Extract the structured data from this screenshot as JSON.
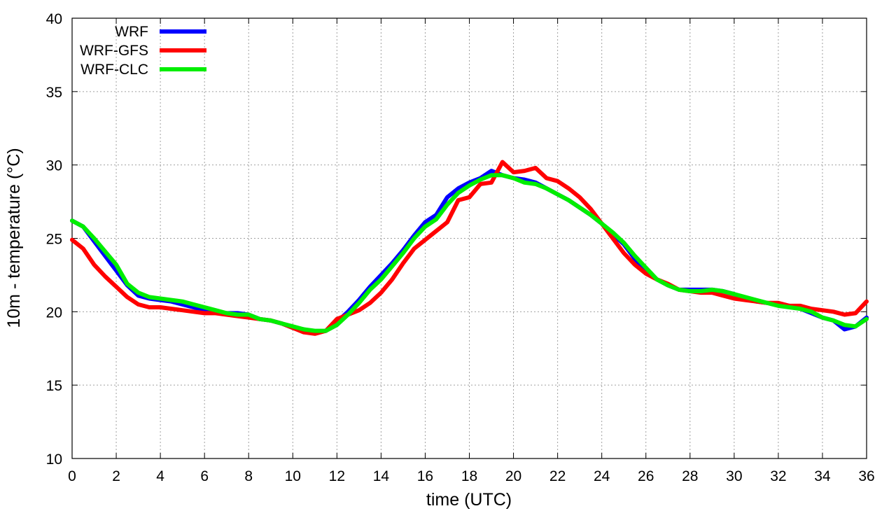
{
  "chart_data": {
    "type": "line",
    "xlabel": "time (UTC)",
    "ylabel": "10m - temperature (°C)",
    "xlim": [
      0,
      36
    ],
    "ylim": [
      10,
      40
    ],
    "xticks": [
      0,
      2,
      4,
      6,
      8,
      10,
      12,
      14,
      16,
      18,
      20,
      22,
      24,
      26,
      28,
      30,
      32,
      34,
      36
    ],
    "yticks": [
      10,
      15,
      20,
      25,
      30,
      35,
      40
    ],
    "grid": true,
    "legend_position": "top-left",
    "x": [
      0,
      0.5,
      1,
      1.5,
      2,
      2.5,
      3,
      3.5,
      4,
      4.5,
      5,
      5.5,
      6,
      6.5,
      7,
      7.5,
      8,
      8.5,
      9,
      9.5,
      10,
      10.5,
      11,
      11.5,
      12,
      12.5,
      13,
      13.5,
      14,
      14.5,
      15,
      15.5,
      16,
      16.5,
      17,
      17.5,
      18,
      18.5,
      19,
      19.5,
      20,
      20.5,
      21,
      21.5,
      22,
      22.5,
      23,
      23.5,
      24,
      24.5,
      25,
      25.5,
      26,
      26.5,
      27,
      27.5,
      28,
      28.5,
      29,
      29.5,
      30,
      30.5,
      31,
      31.5,
      32,
      32.5,
      33,
      33.5,
      34,
      34.5,
      35,
      35.5,
      36
    ],
    "series": [
      {
        "name": "WRF",
        "color": "#0000ff",
        "values": [
          26.2,
          25.8,
          24.8,
          23.8,
          22.8,
          21.8,
          21.1,
          20.9,
          20.8,
          20.7,
          20.5,
          20.3,
          20.1,
          20.0,
          19.9,
          19.9,
          19.8,
          19.5,
          19.4,
          19.2,
          18.9,
          18.8,
          18.6,
          18.7,
          19.3,
          20.0,
          20.8,
          21.7,
          22.5,
          23.3,
          24.2,
          25.2,
          26.1,
          26.6,
          27.8,
          28.4,
          28.8,
          29.1,
          29.6,
          29.3,
          29.1,
          29.0,
          28.8,
          28.4,
          28.0,
          27.6,
          27.1,
          26.6,
          26.0,
          25.3,
          24.6,
          23.6,
          22.8,
          22.2,
          21.8,
          21.5,
          21.5,
          21.5,
          21.5,
          21.4,
          21.2,
          20.9,
          20.7,
          20.6,
          20.5,
          20.4,
          20.2,
          19.9,
          19.6,
          19.4,
          18.8,
          19.0,
          19.6
        ]
      },
      {
        "name": "WRF-GFS",
        "color": "#ff0000",
        "values": [
          24.9,
          24.3,
          23.2,
          22.4,
          21.7,
          21.0,
          20.5,
          20.3,
          20.3,
          20.2,
          20.1,
          20.0,
          19.9,
          19.9,
          19.8,
          19.7,
          19.6,
          19.5,
          19.4,
          19.2,
          18.9,
          18.6,
          18.5,
          18.7,
          19.5,
          19.8,
          20.1,
          20.6,
          21.3,
          22.2,
          23.3,
          24.3,
          24.9,
          25.5,
          26.1,
          27.6,
          27.8,
          28.7,
          28.8,
          30.2,
          29.5,
          29.6,
          29.8,
          29.1,
          28.9,
          28.4,
          27.8,
          27.0,
          26.0,
          25.0,
          24.0,
          23.2,
          22.6,
          22.2,
          21.9,
          21.5,
          21.4,
          21.3,
          21.3,
          21.1,
          20.9,
          20.8,
          20.7,
          20.6,
          20.6,
          20.4,
          20.4,
          20.2,
          20.1,
          20.0,
          19.8,
          19.9,
          20.7
        ]
      },
      {
        "name": "WRF-CLC",
        "color": "#00ee00",
        "values": [
          26.2,
          25.8,
          25.0,
          24.1,
          23.2,
          21.9,
          21.3,
          21.0,
          20.9,
          20.8,
          20.7,
          20.5,
          20.3,
          20.1,
          19.9,
          19.8,
          19.8,
          19.5,
          19.4,
          19.2,
          19.0,
          18.8,
          18.7,
          18.7,
          19.1,
          19.8,
          20.6,
          21.5,
          22.2,
          23.1,
          24.0,
          25.0,
          25.8,
          26.3,
          27.3,
          28.1,
          28.6,
          29.0,
          29.3,
          29.3,
          29.1,
          28.8,
          28.7,
          28.4,
          28.0,
          27.6,
          27.1,
          26.6,
          26.0,
          25.4,
          24.7,
          23.8,
          23.0,
          22.2,
          21.8,
          21.5,
          21.4,
          21.4,
          21.5,
          21.4,
          21.2,
          21.0,
          20.8,
          20.6,
          20.4,
          20.3,
          20.2,
          20.0,
          19.6,
          19.4,
          19.1,
          19.0,
          19.5
        ]
      }
    ]
  }
}
